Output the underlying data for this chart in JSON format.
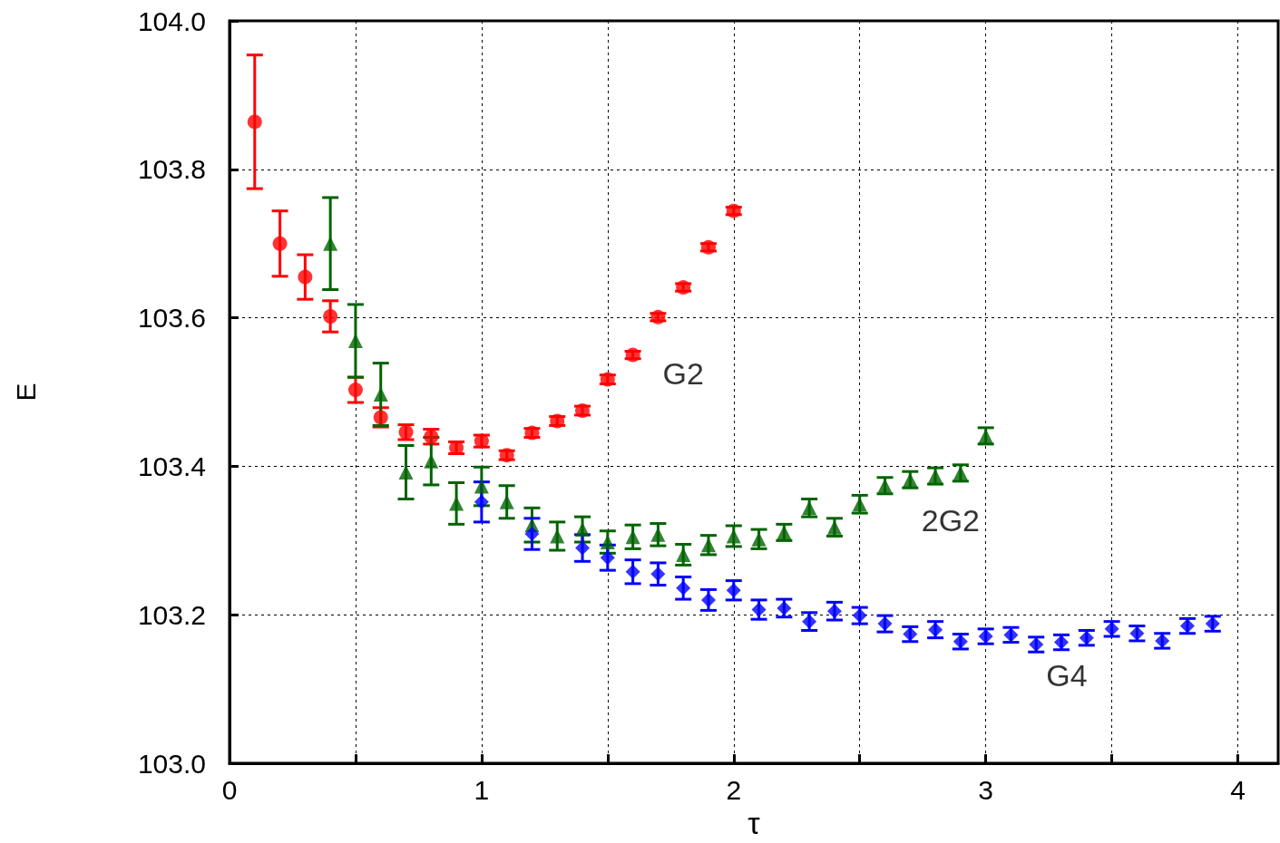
{
  "chart_data": {
    "type": "scatter",
    "xlabel": "τ",
    "ylabel": "E",
    "xlim": [
      0,
      4.16
    ],
    "xticks": [
      0,
      {
        "value": 0.5,
        "label": null
      },
      1,
      {
        "value": 1.5,
        "label": null
      },
      2,
      {
        "value": 2.5,
        "label": null
      },
      3,
      {
        "value": 3.5,
        "label": null
      },
      4
    ],
    "ylim": [
      103.0,
      104.0
    ],
    "yticks": [
      {
        "value": 103.0,
        "label": "103.0"
      },
      103.2,
      103.4,
      103.6,
      103.8,
      {
        "value": 104.0,
        "label": "104.0"
      }
    ],
    "grid": true,
    "series": [
      {
        "name": "G2",
        "color": "#ff0000",
        "marker": "circle",
        "x": [
          0.1,
          0.2,
          0.3,
          0.4,
          0.5,
          0.6,
          0.7,
          0.8,
          0.9,
          1.0,
          1.1,
          1.2,
          1.3,
          1.4,
          1.5,
          1.6,
          1.7,
          1.8,
          1.9,
          2.0
        ],
        "values": [
          103.864,
          103.7,
          103.655,
          103.602,
          103.503,
          103.466,
          103.446,
          103.44,
          103.425,
          103.434,
          103.415,
          103.445,
          103.461,
          103.475,
          103.517,
          103.55,
          103.601,
          103.641,
          103.695,
          103.744
        ],
        "errors": [
          0.09,
          0.044,
          0.03,
          0.021,
          0.017,
          0.013,
          0.01,
          0.01,
          0.008,
          0.008,
          0.006,
          0.006,
          0.006,
          0.006,
          0.006,
          0.005,
          0.005,
          0.005,
          0.005,
          0.005
        ]
      },
      {
        "name": "2G2",
        "color": "#006400",
        "marker": "triangle",
        "x": [
          0.4,
          0.5,
          0.6,
          0.7,
          0.8,
          0.9,
          1.0,
          1.1,
          1.2,
          1.3,
          1.4,
          1.5,
          1.6,
          1.7,
          1.8,
          1.9,
          2.0,
          2.1,
          2.2,
          2.3,
          2.4,
          2.5,
          2.6,
          2.7,
          2.8,
          2.9,
          3.0
        ],
        "values": [
          103.7,
          103.569,
          103.497,
          103.392,
          103.407,
          103.35,
          103.373,
          103.352,
          103.321,
          103.306,
          103.315,
          103.298,
          103.305,
          103.308,
          103.281,
          103.294,
          103.306,
          103.302,
          103.311,
          103.344,
          103.318,
          103.349,
          103.374,
          103.382,
          103.387,
          103.391,
          103.441
        ],
        "errors": [
          0.062,
          0.049,
          0.042,
          0.036,
          0.032,
          0.028,
          0.026,
          0.022,
          0.023,
          0.019,
          0.017,
          0.015,
          0.016,
          0.015,
          0.014,
          0.013,
          0.014,
          0.013,
          0.011,
          0.012,
          0.012,
          0.012,
          0.011,
          0.011,
          0.011,
          0.011,
          0.011
        ]
      },
      {
        "name": "G4",
        "color": "#0000ff",
        "marker": "diamond",
        "x": [
          1.0,
          1.2,
          1.4,
          1.5,
          1.6,
          1.7,
          1.8,
          1.9,
          2.0,
          2.1,
          2.2,
          2.3,
          2.4,
          2.5,
          2.6,
          2.7,
          2.8,
          2.9,
          3.0,
          3.1,
          3.2,
          3.3,
          3.4,
          3.5,
          3.6,
          3.7,
          3.8,
          3.9
        ],
        "values": [
          103.352,
          103.309,
          103.29,
          103.277,
          103.258,
          103.255,
          103.236,
          103.22,
          103.233,
          103.207,
          103.209,
          103.191,
          103.205,
          103.199,
          103.188,
          103.174,
          103.18,
          103.164,
          103.171,
          103.173,
          103.16,
          103.163,
          103.169,
          103.181,
          103.175,
          103.165,
          103.185,
          103.188
        ],
        "errors": [
          0.027,
          0.021,
          0.018,
          0.017,
          0.016,
          0.015,
          0.015,
          0.014,
          0.013,
          0.013,
          0.012,
          0.012,
          0.012,
          0.011,
          0.011,
          0.01,
          0.011,
          0.01,
          0.01,
          0.01,
          0.01,
          0.01,
          0.01,
          0.01,
          0.01,
          0.01,
          0.01,
          0.01
        ]
      }
    ]
  }
}
